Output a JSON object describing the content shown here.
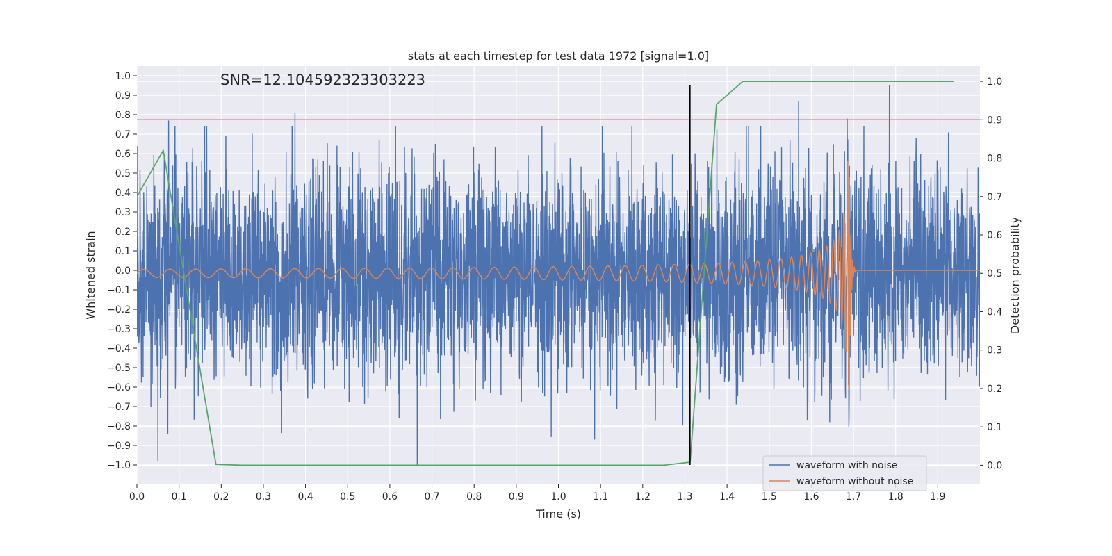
{
  "chart_data": {
    "type": "line",
    "title": "stats at each timestep for test data 1972 [signal=1.0]",
    "xlabel": "Time (s)",
    "ylabel": "Whitened strain",
    "y2label": "Detection probability",
    "annotation": "SNR=12.104592323303223",
    "xlim": [
      0,
      2.0
    ],
    "ylim": [
      -1.1,
      1.05
    ],
    "y2lim": [
      -0.05,
      1.04
    ],
    "xticks": [
      "0.0",
      "0.1",
      "0.2",
      "0.3",
      "0.4",
      "0.5",
      "0.6",
      "0.7",
      "0.8",
      "0.9",
      "1.0",
      "1.1",
      "1.2",
      "1.3",
      "1.4",
      "1.5",
      "1.6",
      "1.7",
      "1.8",
      "1.9"
    ],
    "yticks": [
      "1.0",
      "0.9",
      "0.8",
      "0.7",
      "0.6",
      "0.5",
      "0.4",
      "0.3",
      "0.2",
      "0.1",
      "0.0",
      "−0.1",
      "−0.2",
      "−0.3",
      "−0.4",
      "−0.5",
      "−0.6",
      "−0.7",
      "−0.8",
      "−0.9",
      "−1.0"
    ],
    "y2ticks": [
      "1.0",
      "0.9",
      "0.8",
      "0.7",
      "0.6",
      "0.5",
      "0.4",
      "0.3",
      "0.2",
      "0.1",
      "0.0"
    ],
    "grid": true,
    "legend_position": "bottom-right",
    "threshold_line": {
      "axis": "right",
      "value": 0.9,
      "color": "#c44e52"
    },
    "vertical_marker": {
      "x": 1.312,
      "y_range": [
        -1.0,
        0.95
      ],
      "color": "#000000"
    },
    "series": [
      {
        "name": "waveform with noise",
        "axis": "left",
        "color": "#4c72b0",
        "generated": "dense whitened noise, amplitude ~0.3 std, peaks near ±0.8–1.0",
        "notable_points": [
          [
            0.05,
            -0.98
          ],
          [
            0.075,
            0.77
          ],
          [
            0.375,
            0.81
          ],
          [
            0.665,
            -1.0
          ],
          [
            1.57,
            0.87
          ],
          [
            1.685,
            0.78
          ],
          [
            1.785,
            0.95
          ]
        ]
      },
      {
        "name": "waveform without noise",
        "axis": "left",
        "color": "#dd8452",
        "generated": "chirp: frequency rising from ~16 Hz to ~250 Hz, amplitude ~0.02 growing to ~0.6 before merger at 1.69 s, ringdown to 0",
        "merger_time": 1.69,
        "peak_amplitude": 0.61
      },
      {
        "name": "",
        "axis": "right",
        "color": "#55a868",
        "x": [
          0.0,
          0.0625,
          0.1875,
          0.25,
          1.25,
          1.3125,
          1.375,
          1.4375,
          1.9375
        ],
        "values": [
          0.7,
          0.82,
          0.002,
          0.0,
          0.0,
          0.008,
          0.94,
          1.0,
          1.0
        ]
      }
    ]
  }
}
